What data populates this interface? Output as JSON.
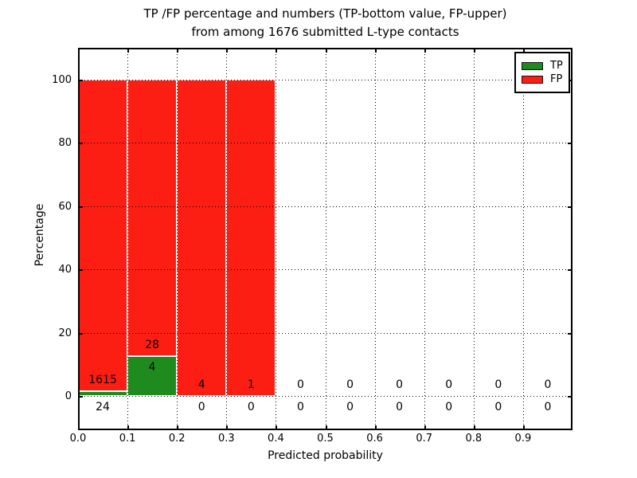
{
  "title": {
    "line1": "TP /FP percentage and numbers (TP-bottom value, FP-upper)",
    "line2": "from among 1676 submitted L-type contacts"
  },
  "axes": {
    "xlabel": "Predicted probability",
    "ylabel": "Percentage",
    "xtick_labels": [
      "0.0",
      "0.1",
      "0.2",
      "0.3",
      "0.4",
      "0.5",
      "0.6",
      "0.7",
      "0.8",
      "0.9"
    ],
    "ytick_labels": [
      "0",
      "20",
      "40",
      "60",
      "80",
      "100"
    ]
  },
  "legend": {
    "items": [
      {
        "label": "TP",
        "color": "#1f8b1f"
      },
      {
        "label": "FP",
        "color": "#fc1d13"
      }
    ]
  },
  "colors": {
    "tp_green": "#1f8b1f",
    "fp_red": "#fc1d13",
    "grid_black": "#000000",
    "background": "#ffffff"
  },
  "chart_data": {
    "type": "bar",
    "stacked": true,
    "title": "TP /FP percentage and numbers (TP-bottom value, FP-upper) from among 1676 submitted L-type contacts",
    "xlabel": "Predicted probability",
    "ylabel": "Percentage",
    "xlim": [
      0.0,
      1.0
    ],
    "ylim": [
      -11,
      110
    ],
    "grid": "dotted",
    "legend_position": "upper right",
    "total_submitted_contacts": 1676,
    "bin_width": 0.1,
    "series_names": [
      "TP",
      "FP"
    ],
    "bins": [
      {
        "range": [
          0.0,
          0.1
        ],
        "tp": 24,
        "fp": 1615,
        "tp_pct": 1.4643,
        "fp_pct": 98.5357
      },
      {
        "range": [
          0.1,
          0.2
        ],
        "tp": 4,
        "fp": 28,
        "tp_pct": 12.5,
        "fp_pct": 87.5
      },
      {
        "range": [
          0.2,
          0.3
        ],
        "tp": 0,
        "fp": 4,
        "tp_pct": 0,
        "fp_pct": 100
      },
      {
        "range": [
          0.3,
          0.4
        ],
        "tp": 0,
        "fp": 1,
        "tp_pct": 0,
        "fp_pct": 100
      },
      {
        "range": [
          0.4,
          0.5
        ],
        "tp": 0,
        "fp": 0,
        "tp_pct": 0,
        "fp_pct": 0
      },
      {
        "range": [
          0.5,
          0.6
        ],
        "tp": 0,
        "fp": 0,
        "tp_pct": 0,
        "fp_pct": 0
      },
      {
        "range": [
          0.6,
          0.7
        ],
        "tp": 0,
        "fp": 0,
        "tp_pct": 0,
        "fp_pct": 0
      },
      {
        "range": [
          0.7,
          0.8
        ],
        "tp": 0,
        "fp": 0,
        "tp_pct": 0,
        "fp_pct": 0
      },
      {
        "range": [
          0.8,
          0.9
        ],
        "tp": 0,
        "fp": 0,
        "tp_pct": 0,
        "fp_pct": 0
      },
      {
        "range": [
          0.9,
          1.0
        ],
        "tp": 0,
        "fp": 0,
        "tp_pct": 0,
        "fp_pct": 0
      }
    ]
  }
}
